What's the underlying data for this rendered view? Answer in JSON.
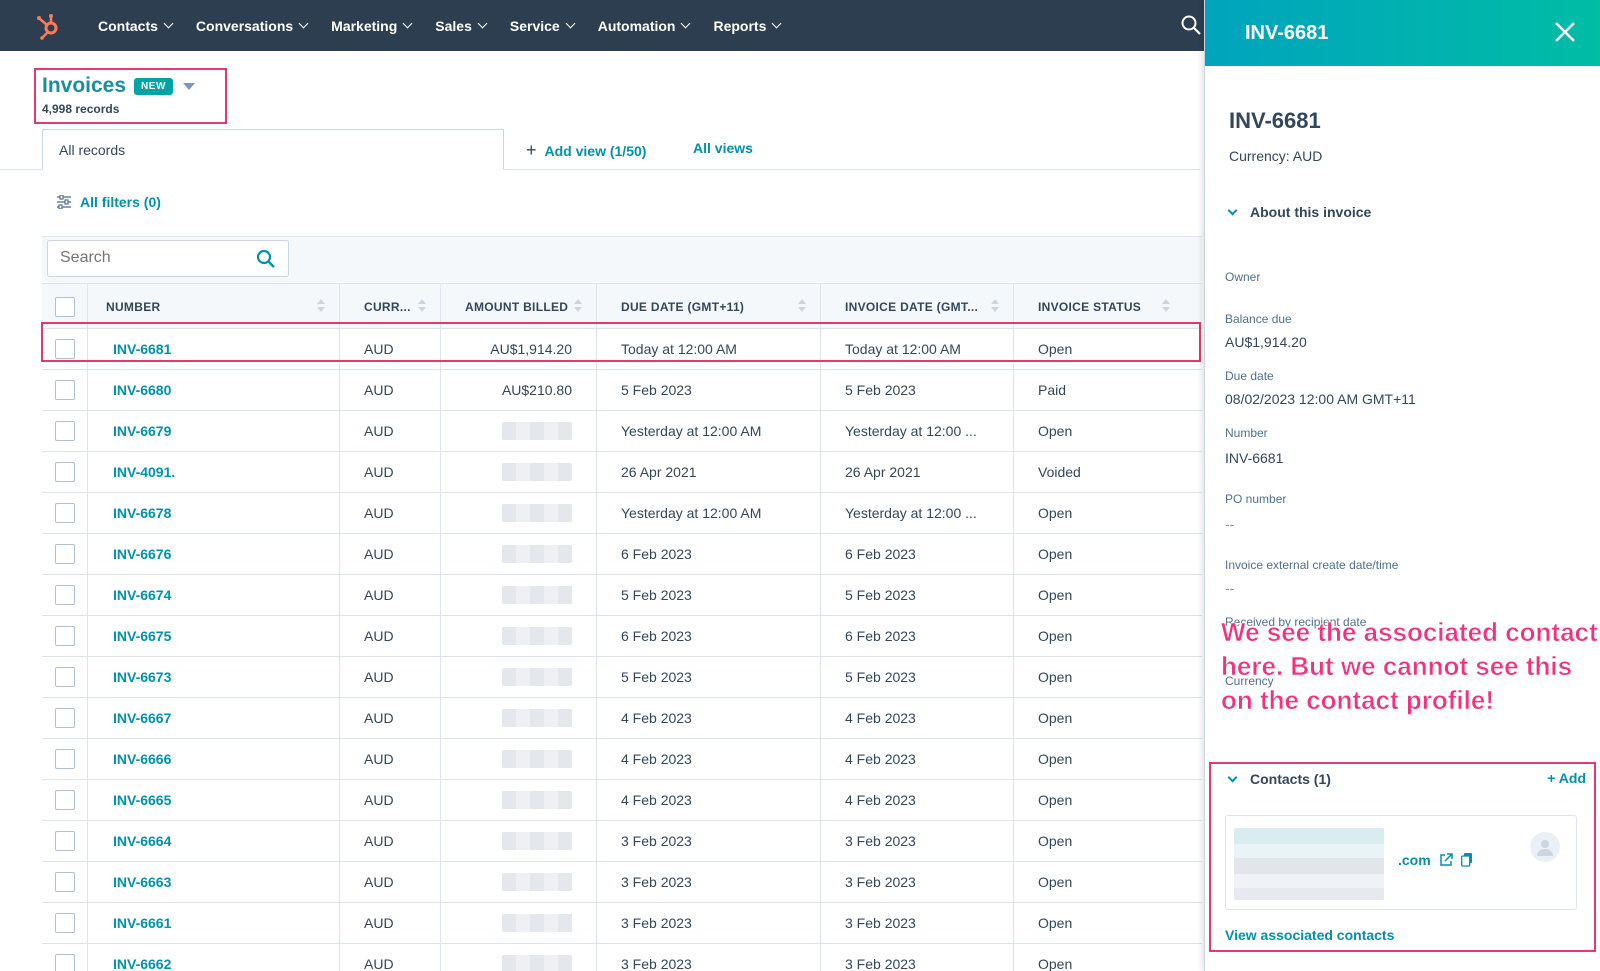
{
  "nav": {
    "items": [
      "Contacts",
      "Conversations",
      "Marketing",
      "Sales",
      "Service",
      "Automation",
      "Reports"
    ]
  },
  "header": {
    "title": "Invoices",
    "badge": "NEW",
    "records": "4,998 records"
  },
  "tabs": {
    "active": "All records",
    "add_view": "Add view (1/50)",
    "all_views": "All views"
  },
  "filters": {
    "label": "All filters (0)"
  },
  "search": {
    "placeholder": "Search"
  },
  "table": {
    "columns": [
      "NUMBER",
      "CURR...",
      "AMOUNT BILLED",
      "DUE DATE (GMT+11)",
      "INVOICE DATE (GMT...",
      "INVOICE STATUS"
    ],
    "rows": [
      {
        "number": "INV-6681",
        "currency": "AUD",
        "amount": "AU$1,914.20",
        "due": "Today at 12:00 AM",
        "invoice_date": "Today at 12:00 AM",
        "status": "Open"
      },
      {
        "number": "INV-6680",
        "currency": "AUD",
        "amount": "AU$210.80",
        "due": "5 Feb 2023",
        "invoice_date": "5 Feb 2023",
        "status": "Paid"
      },
      {
        "number": "INV-6679",
        "currency": "AUD",
        "amount": "",
        "due": "Yesterday at 12:00 AM",
        "invoice_date": "Yesterday at 12:00 ...",
        "status": "Open"
      },
      {
        "number": "INV-4091.",
        "currency": "AUD",
        "amount": "",
        "due": "26 Apr 2021",
        "invoice_date": "26 Apr 2021",
        "status": "Voided"
      },
      {
        "number": "INV-6678",
        "currency": "AUD",
        "amount": "",
        "due": "Yesterday at 12:00 AM",
        "invoice_date": "Yesterday at 12:00 ...",
        "status": "Open"
      },
      {
        "number": "INV-6676",
        "currency": "AUD",
        "amount": "",
        "due": "6 Feb 2023",
        "invoice_date": "6 Feb 2023",
        "status": "Open"
      },
      {
        "number": "INV-6674",
        "currency": "AUD",
        "amount": "",
        "due": "5 Feb 2023",
        "invoice_date": "5 Feb 2023",
        "status": "Open"
      },
      {
        "number": "INV-6675",
        "currency": "AUD",
        "amount": "",
        "due": "6 Feb 2023",
        "invoice_date": "6 Feb 2023",
        "status": "Open"
      },
      {
        "number": "INV-6673",
        "currency": "AUD",
        "amount": "",
        "due": "5 Feb 2023",
        "invoice_date": "5 Feb 2023",
        "status": "Open"
      },
      {
        "number": "INV-6667",
        "currency": "AUD",
        "amount": "",
        "due": "4 Feb 2023",
        "invoice_date": "4 Feb 2023",
        "status": "Open"
      },
      {
        "number": "INV-6666",
        "currency": "AUD",
        "amount": "",
        "due": "4 Feb 2023",
        "invoice_date": "4 Feb 2023",
        "status": "Open"
      },
      {
        "number": "INV-6665",
        "currency": "AUD",
        "amount": "",
        "due": "4 Feb 2023",
        "invoice_date": "4 Feb 2023",
        "status": "Open"
      },
      {
        "number": "INV-6664",
        "currency": "AUD",
        "amount": "",
        "due": "3 Feb 2023",
        "invoice_date": "3 Feb 2023",
        "status": "Open"
      },
      {
        "number": "INV-6663",
        "currency": "AUD",
        "amount": "",
        "due": "3 Feb 2023",
        "invoice_date": "3 Feb 2023",
        "status": "Open"
      },
      {
        "number": "INV-6661",
        "currency": "AUD",
        "amount": "",
        "due": "3 Feb 2023",
        "invoice_date": "3 Feb 2023",
        "status": "Open"
      },
      {
        "number": "INV-6662",
        "currency": "AUD",
        "amount": "",
        "due": "3 Feb 2023",
        "invoice_date": "3 Feb 2023",
        "status": "Open"
      }
    ]
  },
  "panel": {
    "header_title": "INV-6681",
    "record_title": "INV-6681",
    "currency": "Currency: AUD",
    "about_section": "About this invoice",
    "fields": {
      "owner_label": "Owner",
      "balance_label": "Balance due",
      "balance_value": "AU$1,914.20",
      "due_label": "Due date",
      "due_value": "08/02/2023 12:00 AM GMT+11",
      "number_label": "Number",
      "number_value": "INV-6681",
      "po_label": "PO number",
      "po_value": "--",
      "ext_label": "Invoice external create date/time",
      "ext_value": "--",
      "received_label": "Received by recipient date",
      "currency_label": "Currency"
    },
    "annotation": "We see the associated contact here. But we cannot see this on the contact profile!",
    "contacts_section": "Contacts (1)",
    "add_label": "+ Add",
    "contact_email_suffix": ".com",
    "view_associated": "View associated contacts"
  },
  "colors": {
    "nav_bg": "#2d3e50",
    "link": "#0091ae",
    "highlight": "#e5386d",
    "annotation": "#f5317f",
    "brand_orange": "#ff7a59"
  }
}
